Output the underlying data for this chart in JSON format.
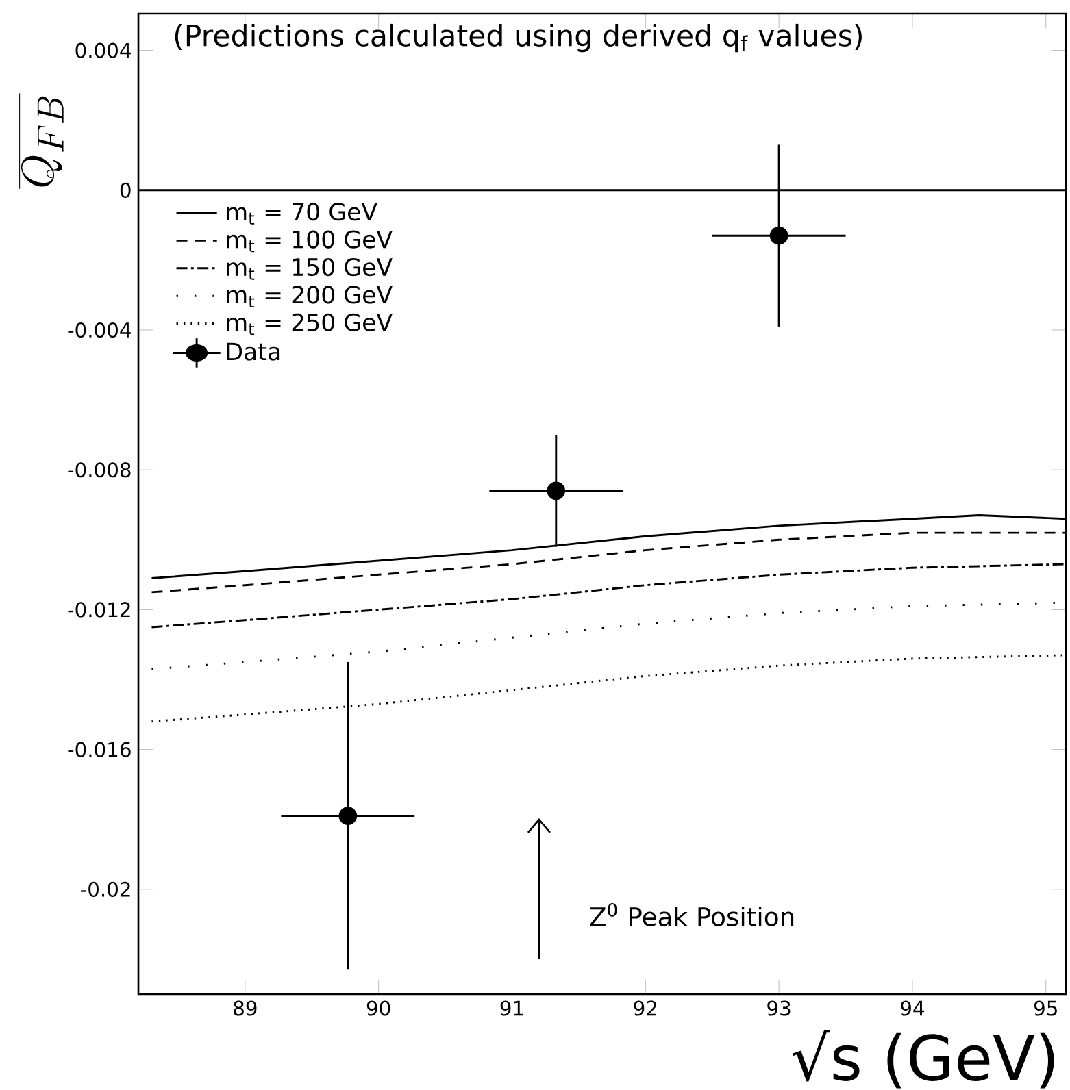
{
  "chart_data": {
    "type": "line",
    "title": "(Predictions calculated using derived q$_{f}$ values)",
    "xlabel": "√s (GeV)",
    "ylabel": "\\overline{Q_{FB}}",
    "xlim": [
      88.2,
      95.15
    ],
    "ylim": [
      -0.023,
      0.00505
    ],
    "xticks": [
      89,
      90,
      91,
      92,
      93,
      94,
      95
    ],
    "yticks": [
      0.004,
      0,
      -0.004,
      -0.008,
      -0.012,
      -0.016,
      -0.02
    ],
    "legend": "top left",
    "ref_lines": [
      {
        "axis": "y",
        "value": 0,
        "color": "#000000",
        "line_style": "solid"
      }
    ],
    "annotations": [
      "Z$^{0}$ Peak Position"
    ],
    "series": [
      {
        "name": "m$_{t}$ = 70  GeV",
        "color": "#000000",
        "line_style": "solid",
        "x": [
          88.3,
          89,
          90,
          91,
          92,
          93,
          94,
          94.5,
          95.15
        ],
        "values": [
          -0.0111,
          -0.0109,
          -0.0106,
          -0.0103,
          -0.0099,
          -0.0096,
          -0.0094,
          -0.0093,
          -0.0094
        ]
      },
      {
        "name": "m$_{t}$ = 100 GeV",
        "color": "#000000",
        "line_style": "dashed",
        "x": [
          88.3,
          89,
          90,
          91,
          92,
          93,
          94,
          95.15
        ],
        "values": [
          -0.0115,
          -0.0113,
          -0.011,
          -0.0107,
          -0.0103,
          -0.01,
          -0.0098,
          -0.0098
        ]
      },
      {
        "name": "m$_{t}$ = 150 GeV",
        "color": "#000000",
        "line_style": "dashdot",
        "x": [
          88.3,
          89,
          90,
          91,
          92,
          93,
          94,
          95.15
        ],
        "values": [
          -0.0125,
          -0.0123,
          -0.012,
          -0.0117,
          -0.0113,
          -0.011,
          -0.0108,
          -0.0107
        ]
      },
      {
        "name": "m$_{t}$ = 200 GeV",
        "color": "#000000",
        "line_style": "loosely dotted",
        "x": [
          88.3,
          89,
          90,
          91,
          92,
          93,
          94,
          95.15
        ],
        "values": [
          -0.0137,
          -0.0135,
          -0.0132,
          -0.0128,
          -0.0124,
          -0.0121,
          -0.0119,
          -0.0118
        ]
      },
      {
        "name": "m$_{t}$ = 250 GeV",
        "color": "#000000",
        "line_style": "dotted",
        "x": [
          88.3,
          89,
          90,
          91,
          92,
          93,
          94,
          95.15
        ],
        "values": [
          -0.0152,
          -0.015,
          -0.0147,
          -0.0143,
          -0.0139,
          -0.0136,
          -0.0134,
          -0.0133
        ]
      },
      {
        "name": "Data",
        "type": "scatter",
        "color": "#000000",
        "marker": "circle",
        "x": [
          89.77,
          91.33,
          93.0
        ],
        "values": [
          -0.0179,
          -0.0086,
          -0.0013
        ],
        "errors": [
          0.0044,
          0.0016,
          0.0026
        ],
        "xerrors": [
          0.5,
          0.5,
          0.5
        ]
      }
    ]
  }
}
